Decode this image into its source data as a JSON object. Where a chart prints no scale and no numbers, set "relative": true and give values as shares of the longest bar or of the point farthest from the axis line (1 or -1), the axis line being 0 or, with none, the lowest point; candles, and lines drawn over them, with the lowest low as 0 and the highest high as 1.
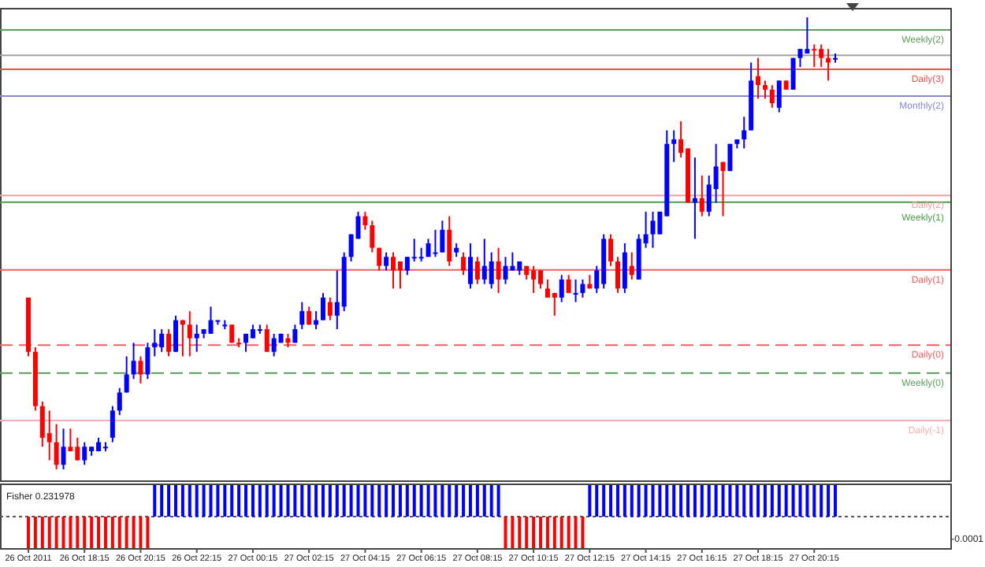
{
  "chart_data": [
    {
      "type": "candlestick",
      "relative": true,
      "tick_labels": false,
      "categories": [
        null,
        null,
        null,
        null,
        null,
        null,
        null,
        null,
        null,
        null,
        null,
        null,
        null,
        null,
        null,
        null,
        null,
        null,
        null,
        null,
        null,
        null,
        null,
        null,
        null,
        null,
        null,
        null,
        null,
        null,
        null,
        null,
        null,
        null,
        null,
        null,
        null,
        null,
        null,
        null,
        null,
        null,
        null,
        null,
        null,
        null,
        null,
        null,
        null,
        null,
        null,
        null,
        null,
        null,
        null,
        null,
        null,
        null,
        null,
        null,
        null,
        null,
        null,
        null,
        null,
        null,
        null,
        null,
        null,
        null,
        null,
        null,
        null,
        null,
        null,
        null,
        null,
        null,
        null,
        null,
        null,
        null,
        null,
        null,
        null,
        null,
        null,
        null,
        null,
        null,
        null,
        null,
        null,
        null,
        null,
        null,
        null,
        null,
        null,
        null,
        null,
        null,
        null,
        null,
        null,
        null,
        null,
        null,
        null,
        null,
        null,
        null,
        null,
        null,
        null,
        null
      ],
      "ohlc": [
        [
          0.38,
          0.38,
          0.25,
          0.26
        ],
        [
          0.26,
          0.27,
          0.13,
          0.14
        ],
        [
          0.14,
          0.15,
          0.05,
          0.07
        ],
        [
          0.08,
          0.13,
          0.02,
          0.06
        ],
        [
          0.06,
          0.1,
          0,
          0.01
        ],
        [
          0.01,
          0.09,
          0.0,
          0.05
        ],
        [
          0.05,
          0.09,
          0.04,
          0.04
        ],
        [
          0.05,
          0.07,
          0.02,
          0.02
        ],
        [
          0.02,
          0.06,
          0.01,
          0.05
        ],
        [
          0.04,
          0.05,
          0.03,
          0.05
        ],
        [
          0.04,
          0.07,
          0.04,
          0.06
        ],
        [
          0.05,
          0.06,
          0.04,
          0.05
        ],
        [
          0.07,
          0.14,
          0.06,
          0.13
        ],
        [
          0.13,
          0.18,
          0.12,
          0.17
        ],
        [
          0.17,
          0.25,
          0.17,
          0.21
        ],
        [
          0.21,
          0.28,
          0.2,
          0.24
        ],
        [
          0.24,
          0.25,
          0.19,
          0.21
        ],
        [
          0.21,
          0.28,
          0.2,
          0.27
        ],
        [
          0.27,
          0.31,
          0.25,
          0.28
        ],
        [
          0.27,
          0.31,
          0.26,
          0.3
        ],
        [
          0.3,
          0.31,
          0.25,
          0.26
        ],
        [
          0.26,
          0.34,
          0.26,
          0.33
        ],
        [
          0.33,
          0.33,
          0.25,
          0.32
        ],
        [
          0.32,
          0.35,
          0.25,
          0.29
        ],
        [
          0.29,
          0.32,
          0.26,
          0.3
        ],
        [
          0.3,
          0.31,
          0.29,
          0.31
        ],
        [
          0.3,
          0.36,
          0.3,
          0.33
        ],
        [
          0.33,
          0.33,
          0.32,
          0.33
        ],
        [
          0.32,
          0.33,
          0.31,
          0.32
        ],
        [
          0.32,
          0.32,
          0.28,
          0.28
        ],
        [
          0.28,
          0.29,
          0.27,
          0.28
        ],
        [
          0.28,
          0.3,
          0.26,
          0.3
        ],
        [
          0.29,
          0.32,
          0.29,
          0.31
        ],
        [
          0.31,
          0.32,
          0.3,
          0.31
        ],
        [
          0.31,
          0.32,
          0.26,
          0.26
        ],
        [
          0.26,
          0.3,
          0.25,
          0.29
        ],
        [
          0.28,
          0.3,
          0.28,
          0.3
        ],
        [
          0.29,
          0.3,
          0.27,
          0.28
        ],
        [
          0.28,
          0.32,
          0.28,
          0.31
        ],
        [
          0.32,
          0.37,
          0.31,
          0.35
        ],
        [
          0.35,
          0.36,
          0.32,
          0.32
        ],
        [
          0.32,
          0.35,
          0.31,
          0.33
        ],
        [
          0.33,
          0.39,
          0.33,
          0.38
        ],
        [
          0.37,
          0.38,
          0.33,
          0.34
        ],
        [
          0.34,
          0.44,
          0.31,
          0.37
        ],
        [
          0.36,
          0.48,
          0.35,
          0.47
        ],
        [
          0.47,
          0.52,
          0.46,
          0.52
        ],
        [
          0.51,
          0.57,
          0.51,
          0.56
        ],
        [
          0.56,
          0.57,
          0.53,
          0.54
        ],
        [
          0.54,
          0.55,
          0.48,
          0.49
        ],
        [
          0.49,
          0.49,
          0.44,
          0.45
        ],
        [
          0.45,
          0.48,
          0.44,
          0.47
        ],
        [
          0.47,
          0.48,
          0.4,
          0.44
        ],
        [
          0.46,
          0.46,
          0.4,
          0.44
        ],
        [
          0.44,
          0.47,
          0.43,
          0.47
        ],
        [
          0.47,
          0.51,
          0.46,
          0.47
        ],
        [
          0.47,
          0.49,
          0.46,
          0.47
        ],
        [
          0.47,
          0.51,
          0.47,
          0.5
        ],
        [
          0.48,
          0.53,
          0.47,
          0.48
        ],
        [
          0.48,
          0.55,
          0.48,
          0.53
        ],
        [
          0.53,
          0.56,
          0.45,
          0.46
        ],
        [
          0.48,
          0.5,
          0.47,
          0.49
        ],
        [
          0.47,
          0.48,
          0.43,
          0.44
        ],
        [
          0.41,
          0.5,
          0.4,
          0.47
        ],
        [
          0.46,
          0.47,
          0.41,
          0.42
        ],
        [
          0.42,
          0.51,
          0.41,
          0.45
        ],
        [
          0.41,
          0.48,
          0.4,
          0.46
        ],
        [
          0.46,
          0.49,
          0.39,
          0.42
        ],
        [
          0.42,
          0.47,
          0.41,
          0.45
        ],
        [
          0.44,
          0.48,
          0.44,
          0.45
        ],
        [
          0.44,
          0.46,
          0.43,
          0.46
        ],
        [
          0.45,
          0.45,
          0.42,
          0.43
        ],
        [
          0.44,
          0.45,
          0.39,
          0.42
        ],
        [
          0.44,
          0.44,
          0.4,
          0.41
        ],
        [
          0.4,
          0.42,
          0.38,
          0.38
        ],
        [
          0.39,
          0.39,
          0.34,
          0.38
        ],
        [
          0.38,
          0.43,
          0.37,
          0.42
        ],
        [
          0.42,
          0.43,
          0.39,
          0.39
        ],
        [
          0.39,
          0.42,
          0.37,
          0.39
        ],
        [
          0.39,
          0.42,
          0.38,
          0.41
        ],
        [
          0.41,
          0.43,
          0.4,
          0.4
        ],
        [
          0.4,
          0.45,
          0.39,
          0.44
        ],
        [
          0.41,
          0.52,
          0.4,
          0.51
        ],
        [
          0.51,
          0.52,
          0.45,
          0.46
        ],
        [
          0.46,
          0.47,
          0.39,
          0.4
        ],
        [
          0.4,
          0.5,
          0.39,
          0.48
        ],
        [
          0.45,
          0.48,
          0.42,
          0.43
        ],
        [
          0.42,
          0.52,
          0.42,
          0.51
        ],
        [
          0.5,
          0.57,
          0.49,
          0.52
        ],
        [
          0.52,
          0.57,
          0.49,
          0.55
        ],
        [
          0.52,
          0.57,
          0.52,
          0.57
        ],
        [
          0.56,
          0.75,
          0.56,
          0.72
        ],
        [
          0.72,
          0.75,
          0.68,
          0.73
        ],
        [
          0.73,
          0.77,
          0.69,
          0.7
        ],
        [
          0.71,
          0.71,
          0.59,
          0.59
        ],
        [
          0.59,
          0.69,
          0.51,
          0.6
        ],
        [
          0.6,
          0.65,
          0.56,
          0.57
        ],
        [
          0.57,
          0.65,
          0.56,
          0.63
        ],
        [
          0.62,
          0.72,
          0.59,
          0.67
        ],
        [
          0.68,
          0.68,
          0.56,
          0.66
        ],
        [
          0.66,
          0.72,
          0.66,
          0.72
        ],
        [
          0.72,
          0.73,
          0.71,
          0.73
        ],
        [
          0.73,
          0.78,
          0.71,
          0.75
        ],
        [
          0.75,
          0.9,
          0.75,
          0.86
        ],
        [
          0.87,
          0.91,
          0.82,
          0.85
        ],
        [
          0.85,
          0.86,
          0.82,
          0.84
        ],
        [
          0.84,
          0.85,
          0.8,
          0.81
        ],
        [
          0.8,
          0.86,
          0.79,
          0.86
        ],
        [
          0.86,
          0.86,
          0.84,
          0.84
        ],
        [
          0.84,
          0.91,
          0.84,
          0.91
        ],
        [
          0.91,
          0.93,
          0.89,
          0.93
        ],
        [
          0.92,
          1,
          0.92,
          0.93
        ],
        [
          0.93,
          0.94,
          0.89,
          0.93
        ],
        [
          0.93,
          0.94,
          0.89,
          0.91
        ],
        [
          0.91,
          0.93,
          0.86,
          0.9
        ],
        [
          0.91,
          0.92,
          0.9,
          0.91
        ]
      ],
      "colors": [
        "#ff0000",
        "#ff0000",
        "#ff0000",
        "#ff0000",
        "#ff0000",
        "#0000ff",
        "#ff0000",
        "#ff0000",
        "#0000ff",
        "#0000ff",
        "#0000ff",
        "#0000ff",
        "#0000ff",
        "#0000ff",
        "#0000ff",
        "#0000ff",
        "#ff0000",
        "#0000ff",
        "#0000ff",
        "#0000ff",
        "#ff0000",
        "#0000ff",
        "#ff0000",
        "#ff0000",
        "#0000ff",
        "#0000ff",
        "#0000ff",
        "#0000ff",
        "#0000ff",
        "#ff0000",
        "#ff0000",
        "#0000ff",
        "#0000ff",
        "#0000ff",
        "#ff0000",
        "#0000ff",
        "#0000ff",
        "#ff0000",
        "#0000ff",
        "#0000ff",
        "#ff0000",
        "#0000ff",
        "#0000ff",
        "#ff0000",
        "#0000ff",
        "#0000ff",
        "#0000ff",
        "#0000ff",
        "#ff0000",
        "#ff0000",
        "#ff0000",
        "#0000ff",
        "#ff0000",
        "#ff0000",
        "#0000ff",
        "#0000ff",
        "#0000ff",
        "#0000ff",
        "#0000ff",
        "#0000ff",
        "#ff0000",
        "#0000ff",
        "#ff0000",
        "#0000ff",
        "#ff0000",
        "#0000ff",
        "#0000ff",
        "#ff0000",
        "#0000ff",
        "#0000ff",
        "#0000ff",
        "#ff0000",
        "#ff0000",
        "#ff0000",
        "#ff0000",
        "#ff0000",
        "#0000ff",
        "#ff0000",
        "#0000ff",
        "#0000ff",
        "#ff0000",
        "#0000ff",
        "#0000ff",
        "#ff0000",
        "#ff0000",
        "#0000ff",
        "#ff0000",
        "#0000ff",
        "#0000ff",
        "#0000ff",
        "#0000ff",
        "#0000ff",
        "#0000ff",
        "#ff0000",
        "#ff0000",
        "#0000ff",
        "#ff0000",
        "#0000ff",
        "#0000ff",
        "#ff0000",
        "#0000ff",
        "#0000ff",
        "#0000ff",
        "#0000ff",
        "#ff0000",
        "#ff0000",
        "#ff0000",
        "#0000ff",
        "#ff0000",
        "#0000ff",
        "#0000ff",
        "#0000ff",
        "#ff0000",
        "#ff0000",
        "#ff0000",
        "#0000ff"
      ],
      "ref_lines": [
        {
          "axis": "y",
          "value": 0.972,
          "label": "Weekly(2)",
          "color": "#5c9c5c"
        },
        {
          "axis": "y",
          "value": 0.916,
          "label": null,
          "color": "#a0a0a0"
        },
        {
          "axis": "y",
          "value": 0.885,
          "label": "Daily(3)",
          "color": "#f05050"
        },
        {
          "axis": "y",
          "value": 0.826,
          "label": "Monthly(2)",
          "color": "#8888cc"
        },
        {
          "axis": "y",
          "value": 0.606,
          "label": "Daily(2)",
          "color": "#f4a0a0"
        },
        {
          "axis": "y",
          "value": 0.591,
          "label": "Weekly(1)",
          "color": "#4c9c4c"
        },
        {
          "axis": "y",
          "value": 0.441,
          "label": "Daily(1)",
          "color": "#f06060"
        },
        {
          "axis": "y",
          "value": 0.275,
          "label": "Daily(0)",
          "color": "#f06060",
          "line_style": "dashed"
        },
        {
          "axis": "y",
          "value": 0.213,
          "label": "Weekly(0)",
          "color": "#5c9c5c",
          "line_style": "dashed"
        },
        {
          "axis": "y",
          "value": 0.108,
          "label": "Daily(-1)",
          "color": "#f4b0b0"
        }
      ]
    },
    {
      "type": "bar",
      "relative": true,
      "tick_labels": "x",
      "title": "Fisher 0.231978",
      "annotations": [
        "-0.0001"
      ],
      "ref_lines": [
        {
          "axis": "y",
          "value": 0,
          "label": null,
          "color": "#555555",
          "line_style": "dotted"
        }
      ],
      "categories": [
        "26 Oct 2011",
        null,
        null,
        null,
        null,
        null,
        null,
        null,
        "26 Oct 18:15",
        null,
        null,
        null,
        null,
        null,
        null,
        null,
        "26 Oct 20:15",
        null,
        null,
        null,
        null,
        null,
        null,
        null,
        "26 Oct 22:15",
        null,
        null,
        null,
        null,
        null,
        null,
        null,
        "27 Oct 00:15",
        null,
        null,
        null,
        null,
        null,
        null,
        null,
        "27 Oct 02:15",
        null,
        null,
        null,
        null,
        null,
        null,
        null,
        "27 Oct 04:15",
        null,
        null,
        null,
        null,
        null,
        null,
        null,
        "27 Oct 06:15",
        null,
        null,
        null,
        null,
        null,
        null,
        null,
        "27 Oct 08:15",
        null,
        null,
        null,
        null,
        null,
        null,
        null,
        "27 Oct 10:15",
        null,
        null,
        null,
        null,
        null,
        null,
        null,
        "27 Oct 12:15",
        null,
        null,
        null,
        null,
        null,
        null,
        null,
        "27 Oct 14:15",
        null,
        null,
        null,
        null,
        null,
        null,
        null,
        "27 Oct 16:15",
        null,
        null,
        null,
        null,
        null,
        null,
        null,
        "27 Oct 18:15",
        null,
        null,
        null,
        null,
        null,
        null,
        null,
        "27 Oct 20:15",
        null,
        null,
        null
      ],
      "values": [
        -1,
        -1,
        -1,
        -1,
        -1,
        -1,
        -1,
        -1,
        -1,
        -1,
        -1,
        -1,
        -1,
        -1,
        -1,
        -1,
        -1,
        -1,
        1,
        1,
        1,
        1,
        1,
        1,
        1,
        1,
        1,
        1,
        1,
        1,
        1,
        1,
        1,
        1,
        1,
        1,
        1,
        1,
        1,
        1,
        1,
        1,
        1,
        1,
        1,
        1,
        1,
        1,
        1,
        1,
        1,
        1,
        1,
        1,
        1,
        1,
        1,
        1,
        1,
        1,
        1,
        1,
        1,
        1,
        1,
        1,
        1,
        1,
        -1,
        -1,
        -1,
        -1,
        -1,
        -1,
        -1,
        -1,
        -1,
        -1,
        -1,
        -1,
        1,
        1,
        1,
        1,
        1,
        1,
        1,
        1,
        1,
        1,
        1,
        1,
        1,
        1,
        1,
        1,
        1,
        1,
        1,
        1,
        1,
        1,
        1,
        1,
        1,
        1,
        1,
        1,
        1,
        1,
        1,
        1,
        1,
        1,
        1,
        1
      ],
      "colors": [
        "#ff0000",
        "#ff0000",
        "#ff0000",
        "#ff0000",
        "#ff0000",
        "#ff0000",
        "#ff0000",
        "#ff0000",
        "#ff0000",
        "#ff0000",
        "#ff0000",
        "#ff0000",
        "#ff0000",
        "#ff0000",
        "#ff0000",
        "#ff0000",
        "#ff0000",
        "#ff0000",
        "#0000ff",
        "#0000ff",
        "#0000ff",
        "#0000ff",
        "#0000ff",
        "#0000ff",
        "#0000ff",
        "#0000ff",
        "#0000ff",
        "#0000ff",
        "#0000ff",
        "#0000ff",
        "#0000ff",
        "#0000ff",
        "#0000ff",
        "#0000ff",
        "#0000ff",
        "#0000ff",
        "#0000ff",
        "#0000ff",
        "#0000ff",
        "#0000ff",
        "#0000ff",
        "#0000ff",
        "#0000ff",
        "#0000ff",
        "#0000ff",
        "#0000ff",
        "#0000ff",
        "#0000ff",
        "#0000ff",
        "#0000ff",
        "#0000ff",
        "#0000ff",
        "#0000ff",
        "#0000ff",
        "#0000ff",
        "#0000ff",
        "#0000ff",
        "#0000ff",
        "#0000ff",
        "#0000ff",
        "#0000ff",
        "#0000ff",
        "#0000ff",
        "#0000ff",
        "#0000ff",
        "#0000ff",
        "#0000ff",
        "#0000ff",
        "#ff0000",
        "#ff0000",
        "#ff0000",
        "#ff0000",
        "#ff0000",
        "#ff0000",
        "#ff0000",
        "#ff0000",
        "#ff0000",
        "#ff0000",
        "#ff0000",
        "#ff0000",
        "#0000ff",
        "#0000ff",
        "#0000ff",
        "#0000ff",
        "#0000ff",
        "#0000ff",
        "#0000ff",
        "#0000ff",
        "#0000ff",
        "#0000ff",
        "#0000ff",
        "#0000ff",
        "#0000ff",
        "#0000ff",
        "#0000ff",
        "#0000ff",
        "#0000ff",
        "#0000ff",
        "#0000ff",
        "#0000ff",
        "#0000ff",
        "#0000ff",
        "#0000ff",
        "#0000ff",
        "#0000ff",
        "#0000ff",
        "#0000ff",
        "#0000ff",
        "#0000ff",
        "#0000ff",
        "#0000ff",
        "#0000ff",
        "#0000ff",
        "#0000ff",
        "#0000ff",
        "#0000ff"
      ]
    }
  ]
}
